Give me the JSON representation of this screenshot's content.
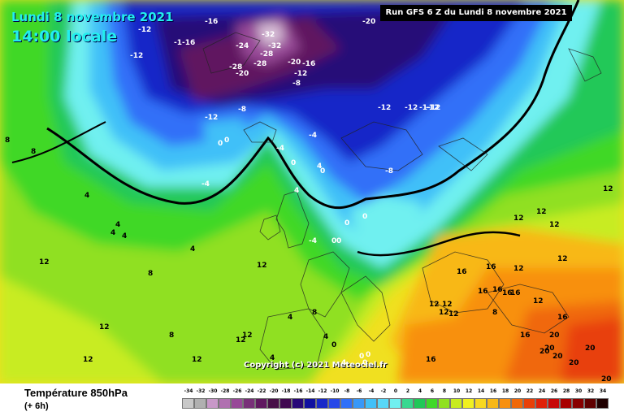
{
  "header": {
    "date": "Lundi 8 novembre 2021",
    "time": "14:00 locale",
    "run": "Run GFS 6 Z du Lundi 8 novembre 2021"
  },
  "copyright": "Copyright (c) 2021 Meteociel.fr",
  "legend": {
    "title": "Température 850hPa",
    "subtitle": "(+ 6h)",
    "scale": [
      {
        "v": "-34",
        "c": "#c8c8c8"
      },
      {
        "v": "-32",
        "c": "#b0b0b0"
      },
      {
        "v": "-30",
        "c": "#c898c8"
      },
      {
        "v": "-28",
        "c": "#b070b0"
      },
      {
        "v": "-26",
        "c": "#984898"
      },
      {
        "v": "-24",
        "c": "#783078"
      },
      {
        "v": "-22",
        "c": "#601860"
      },
      {
        "v": "-20",
        "c": "#481048"
      },
      {
        "v": "-18",
        "c": "#400850"
      },
      {
        "v": "-16",
        "c": "#280878"
      },
      {
        "v": "-14",
        "c": "#1010a0"
      },
      {
        "v": "-12",
        "c": "#1828c8"
      },
      {
        "v": "-10",
        "c": "#2848e8"
      },
      {
        "v": "-8",
        "c": "#3070f8"
      },
      {
        "v": "-6",
        "c": "#3898f8"
      },
      {
        "v": "-4",
        "c": "#40c0f8"
      },
      {
        "v": "-2",
        "c": "#58d8f8"
      },
      {
        "v": "0",
        "c": "#70f0f0"
      },
      {
        "v": "2",
        "c": "#38d890"
      },
      {
        "v": "4",
        "c": "#20c858"
      },
      {
        "v": "6",
        "c": "#40d828"
      },
      {
        "v": "8",
        "c": "#90e020"
      },
      {
        "v": "10",
        "c": "#c8ec20"
      },
      {
        "v": "12",
        "c": "#f0f020"
      },
      {
        "v": "14",
        "c": "#f8d820"
      },
      {
        "v": "16",
        "c": "#f8b818"
      },
      {
        "v": "18",
        "c": "#f89010"
      },
      {
        "v": "20",
        "c": "#f06808"
      },
      {
        "v": "22",
        "c": "#e84008"
      },
      {
        "v": "24",
        "c": "#e02008"
      },
      {
        "v": "26",
        "c": "#c80808"
      },
      {
        "v": "28",
        "c": "#a80000"
      },
      {
        "v": "30",
        "c": "#880000"
      },
      {
        "v": "32",
        "c": "#600000"
      },
      {
        "v": "34",
        "c": "#200000"
      }
    ]
  },
  "map_labels": [
    {
      "t": "-16"
    },
    {
      "t": "-12"
    },
    {
      "t": "-12"
    },
    {
      "t": "-1-16"
    },
    {
      "t": "-12"
    },
    {
      "t": "-20"
    },
    {
      "t": "-32"
    },
    {
      "t": "-32"
    },
    {
      "t": "-28"
    },
    {
      "t": "-24"
    },
    {
      "t": "-28"
    },
    {
      "t": "-28"
    },
    {
      "t": "-20"
    },
    {
      "t": "-20"
    },
    {
      "t": "-16"
    },
    {
      "t": "-12"
    },
    {
      "t": "-8"
    },
    {
      "t": "-12"
    },
    {
      "t": "-8"
    },
    {
      "t": "-12"
    },
    {
      "t": "-1-12"
    },
    {
      "t": "-12"
    },
    {
      "t": "0"
    },
    {
      "t": "0"
    },
    {
      "t": "-4"
    },
    {
      "t": "-4"
    },
    {
      "t": "4"
    },
    {
      "t": "-4"
    },
    {
      "t": "0"
    },
    {
      "t": "-8"
    },
    {
      "t": "0"
    },
    {
      "t": "0"
    },
    {
      "t": "0"
    },
    {
      "t": "-4"
    },
    {
      "t": "4"
    },
    {
      "t": "8"
    },
    {
      "t": "8"
    },
    {
      "t": "0"
    },
    {
      "t": "4"
    },
    {
      "t": "4"
    },
    {
      "t": "4"
    },
    {
      "t": "12"
    },
    {
      "t": "8"
    },
    {
      "t": "12"
    },
    {
      "t": "12"
    },
    {
      "t": "12"
    },
    {
      "t": "12"
    },
    {
      "t": "12"
    },
    {
      "t": "12"
    },
    {
      "t": "16"
    },
    {
      "t": "16"
    },
    {
      "t": "16"
    },
    {
      "t": "16"
    },
    {
      "t": "16"
    },
    {
      "t": "12"
    },
    {
      "t": "12"
    },
    {
      "t": "16"
    },
    {
      "t": "16"
    },
    {
      "t": "20"
    },
    {
      "t": "20"
    },
    {
      "t": "20"
    },
    {
      "t": "20"
    },
    {
      "t": "20"
    },
    {
      "t": "8"
    },
    {
      "t": "4"
    },
    {
      "t": "4"
    },
    {
      "t": "4"
    },
    {
      "t": "0"
    },
    {
      "t": "12"
    },
    {
      "t": "12"
    },
    {
      "t": "12"
    },
    {
      "t": "12"
    },
    {
      "t": "12"
    },
    {
      "t": "8"
    },
    {
      "t": "4"
    },
    {
      "t": "4"
    },
    {
      "t": "16"
    },
    {
      "t": "12"
    },
    {
      "t": "8"
    },
    {
      "t": "0"
    },
    {
      "t": "0"
    },
    {
      "t": "0"
    },
    {
      "t": "0"
    },
    {
      "t": "4"
    },
    {
      "t": "12"
    },
    {
      "t": "12"
    },
    {
      "t": "16"
    },
    {
      "t": "20"
    },
    {
      "t": "20"
    },
    {
      "t": "12"
    }
  ]
}
